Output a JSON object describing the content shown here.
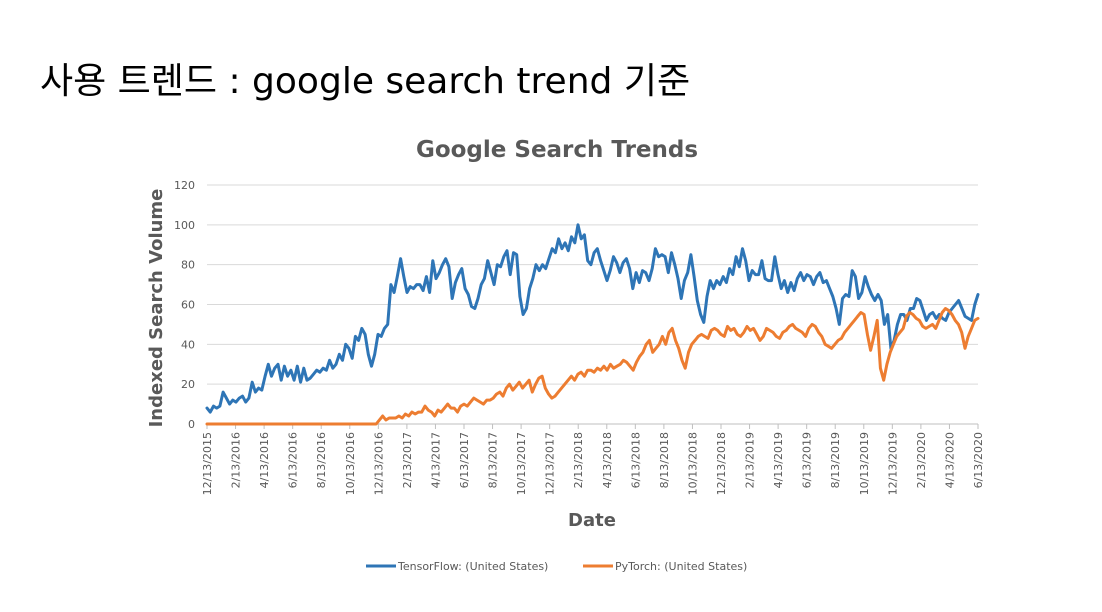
{
  "slide": {
    "title": "사용 트렌드 : google search trend 기준"
  },
  "chart_data": {
    "type": "line",
    "title": "Google Search Trends",
    "xlabel": "Date",
    "ylabel": "Indexed Search Volume",
    "ylim": [
      0,
      120
    ],
    "yticks": [
      0,
      20,
      40,
      60,
      80,
      100,
      120
    ],
    "x_tick_labels": [
      "12/13/2015",
      "2/13/2016",
      "4/13/2016",
      "6/13/2016",
      "8/13/2016",
      "10/13/2016",
      "12/13/2016",
      "2/13/2017",
      "4/13/2017",
      "6/13/2017",
      "8/13/2017",
      "10/13/2017",
      "12/13/2017",
      "2/13/2018",
      "4/13/2018",
      "6/13/2018",
      "8/13/2018",
      "10/13/2018",
      "12/13/2018",
      "2/13/2019",
      "4/13/2019",
      "6/13/2019",
      "8/13/2019",
      "10/13/2019",
      "12/13/2019",
      "2/13/2020",
      "4/13/2020",
      "6/13/2020"
    ],
    "grid": "horizontal",
    "legend_position": "bottom",
    "series": [
      {
        "name": "TensorFlow: (United States)",
        "color": "#2e75b6",
        "values": [
          8,
          6,
          9,
          8,
          9,
          16,
          13,
          10,
          12,
          11,
          13,
          14,
          11,
          13,
          21,
          16,
          18,
          17,
          24,
          30,
          24,
          28,
          30,
          22,
          29,
          24,
          27,
          22,
          29,
          21,
          28,
          22,
          23,
          25,
          27,
          26,
          28,
          27,
          32,
          28,
          30,
          35,
          32,
          40,
          38,
          33,
          44,
          42,
          48,
          45,
          35,
          29,
          35,
          45,
          44,
          48,
          50,
          70,
          66,
          74,
          83,
          74,
          66,
          69,
          68,
          70,
          70,
          67,
          74,
          66,
          82,
          73,
          76,
          80,
          83,
          79,
          63,
          71,
          75,
          78,
          68,
          65,
          59,
          58,
          63,
          70,
          73,
          82,
          76,
          70,
          80,
          79,
          84,
          87,
          75,
          86,
          85,
          64,
          55,
          58,
          68,
          73,
          80,
          77,
          80,
          78,
          83,
          88,
          86,
          93,
          88,
          91,
          87,
          94,
          91,
          100,
          93,
          95,
          82,
          80,
          86,
          88,
          82,
          77,
          72,
          77,
          84,
          81,
          76,
          81,
          83,
          78,
          68,
          76,
          71,
          77,
          76,
          72,
          78,
          88,
          84,
          85,
          84,
          76,
          86,
          80,
          73,
          63,
          72,
          76,
          85,
          74,
          62,
          55,
          51,
          64,
          72,
          68,
          72,
          70,
          74,
          71,
          78,
          75,
          84,
          79,
          88,
          82,
          72,
          77,
          75,
          75,
          82,
          73,
          72,
          72,
          84,
          75,
          68,
          72,
          66,
          71,
          67,
          73,
          76,
          72,
          75,
          74,
          70,
          74,
          76,
          71,
          72,
          68,
          64,
          58,
          50,
          63,
          65,
          64,
          77,
          74,
          63,
          66,
          74,
          69,
          65,
          62,
          65,
          62,
          50,
          55,
          38,
          42,
          50,
          55,
          55,
          52,
          58,
          58,
          63,
          62,
          57,
          52,
          55,
          56,
          53,
          55,
          53,
          52,
          56,
          58,
          60,
          62,
          58,
          54,
          53,
          52,
          60,
          65
        ]
      },
      {
        "name": "PyTorch: (United States)",
        "color": "#ed7d31",
        "values": [
          0,
          0,
          0,
          0,
          0,
          0,
          0,
          0,
          0,
          0,
          0,
          0,
          0,
          0,
          0,
          0,
          0,
          0,
          0,
          0,
          0,
          0,
          0,
          0,
          0,
          0,
          0,
          0,
          0,
          0,
          0,
          0,
          0,
          0,
          0,
          0,
          0,
          0,
          0,
          0,
          0,
          0,
          0,
          0,
          0,
          0,
          0,
          0,
          0,
          0,
          0,
          0,
          0,
          2,
          4,
          2,
          3,
          3,
          3,
          4,
          3,
          5,
          4,
          6,
          5,
          6,
          6,
          9,
          7,
          6,
          4,
          7,
          6,
          8,
          10,
          8,
          8,
          6,
          9,
          10,
          9,
          11,
          13,
          12,
          11,
          10,
          12,
          12,
          13,
          15,
          16,
          14,
          18,
          20,
          17,
          19,
          21,
          18,
          20,
          22,
          16,
          20,
          23,
          24,
          18,
          15,
          13,
          14,
          16,
          18,
          20,
          22,
          24,
          22,
          25,
          26,
          24,
          27,
          27,
          26,
          28,
          27,
          29,
          27,
          30,
          28,
          29,
          30,
          32,
          31,
          29,
          27,
          31,
          34,
          36,
          40,
          42,
          36,
          38,
          40,
          44,
          40,
          46,
          48,
          42,
          38,
          32,
          28,
          36,
          40,
          42,
          44,
          45,
          44,
          43,
          47,
          48,
          47,
          45,
          44,
          49,
          47,
          48,
          45,
          44,
          46,
          49,
          47,
          48,
          45,
          42,
          44,
          48,
          47,
          46,
          44,
          43,
          46,
          47,
          49,
          50,
          48,
          47,
          46,
          44,
          48,
          50,
          49,
          46,
          44,
          40,
          39,
          38,
          40,
          42,
          43,
          46,
          48,
          50,
          52,
          54,
          56,
          55,
          45,
          37,
          44,
          52,
          28,
          22,
          30,
          36,
          40,
          44,
          46,
          48,
          54,
          56,
          55,
          53,
          52,
          49,
          48,
          49,
          50,
          48,
          52,
          56,
          58,
          57,
          55,
          52,
          50,
          46,
          38,
          44,
          48,
          52,
          53
        ]
      }
    ]
  }
}
